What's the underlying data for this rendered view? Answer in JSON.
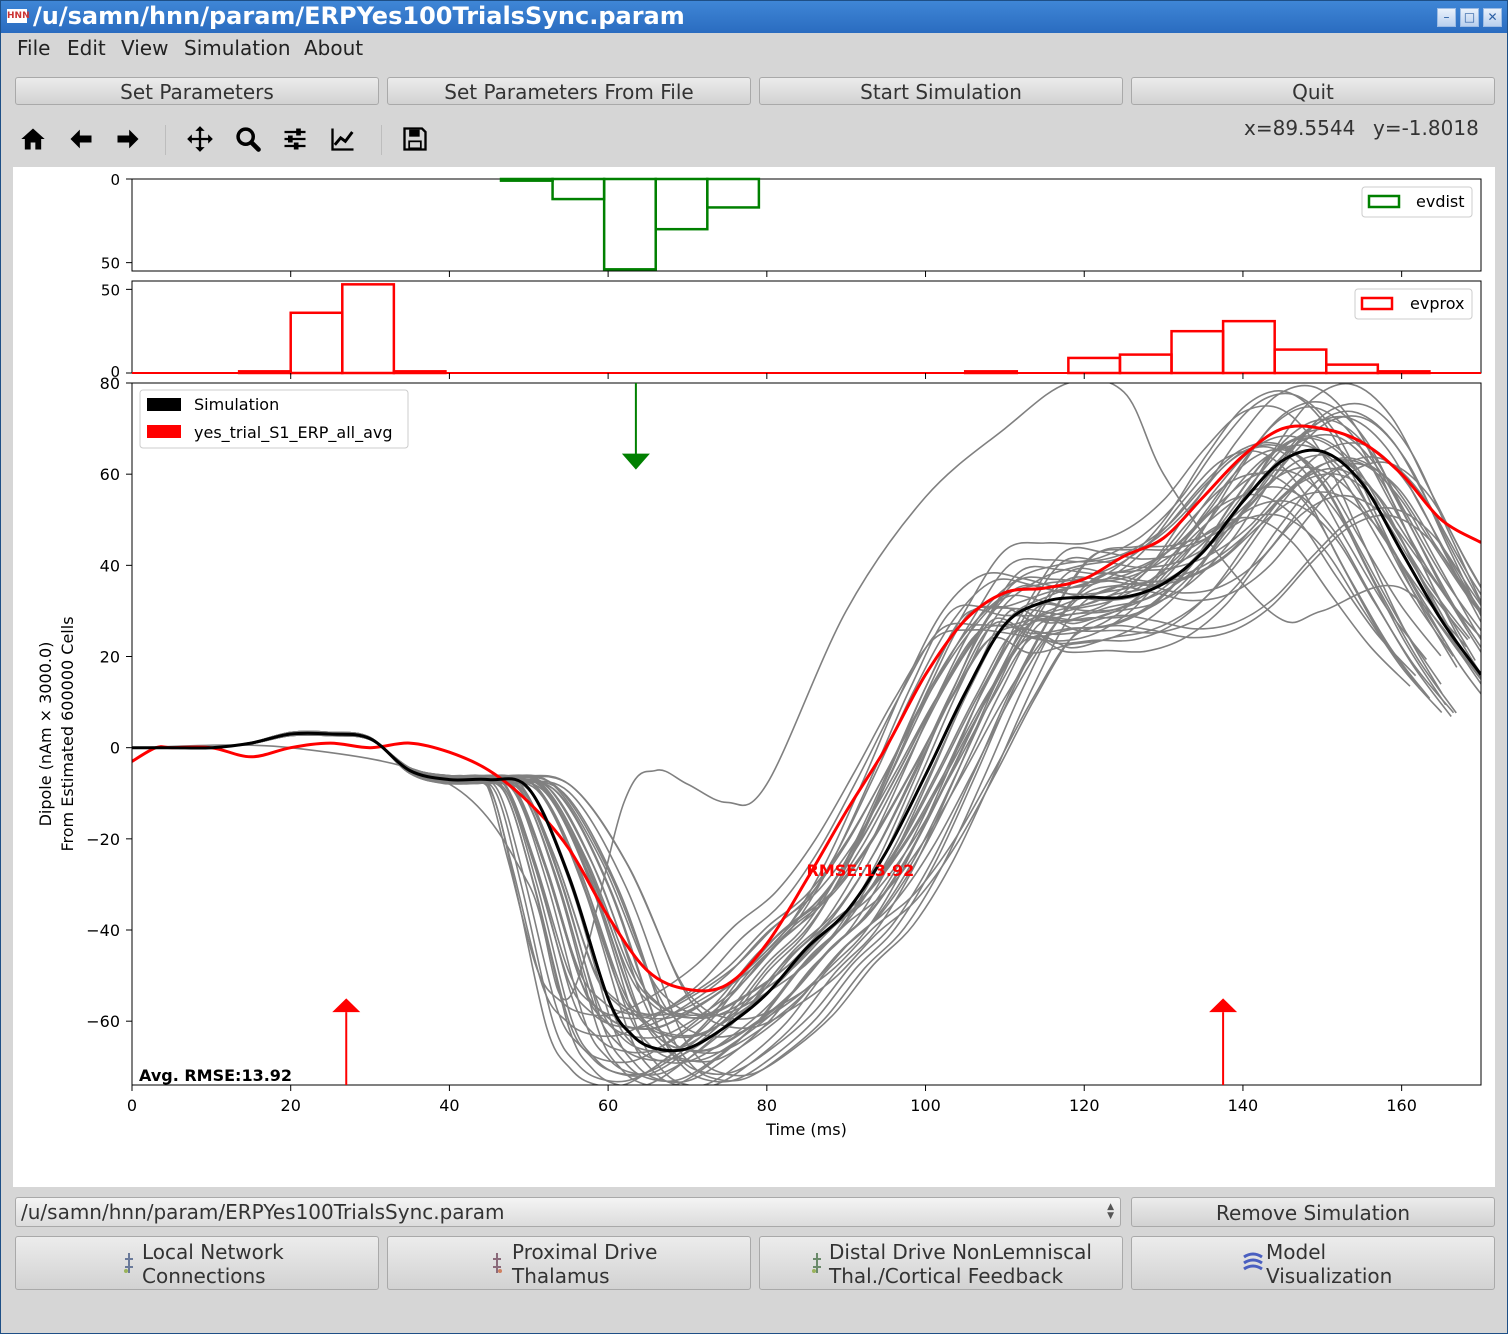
{
  "window": {
    "title": "/u/samn/hnn/param/ERPYes100TrialsSync.param",
    "app_icon_label": "HNN"
  },
  "menu": [
    "File",
    "Edit",
    "View",
    "Simulation",
    "About"
  ],
  "top_buttons": [
    "Set Parameters",
    "Set Parameters From File",
    "Start Simulation",
    "Quit"
  ],
  "toolbar_icons": [
    "home-icon",
    "back-arrow-icon",
    "forward-arrow-icon",
    "pan-icon",
    "zoom-icon",
    "subplots-config-icon",
    "axes-edit-icon",
    "save-icon"
  ],
  "coords": {
    "x": "x=89.5544",
    "y": "y=-1.8018"
  },
  "plot": {
    "evdist_legend": "evdist",
    "evprox_legend": "evprox",
    "legend_sim": "Simulation",
    "legend_data": "yes_trial_S1_ERP_all_avg",
    "ylabel_line1": "Dipole (nAm × 3000.0)",
    "ylabel_line2": "From Estimated 600000 Cells",
    "xlabel": "Time (ms)",
    "rmse_label": "RMSE:13.92",
    "avg_rmse_label": "Avg. RMSE:13.92",
    "colors": {
      "simulation": "#000000",
      "data": "#ff0000",
      "trials": "#808080",
      "evdist": "#008000",
      "evprox": "#ff0000"
    }
  },
  "chart_data": [
    {
      "type": "bar",
      "title": "",
      "series": [
        {
          "name": "evdist",
          "x": [
            40,
            46.5,
            53,
            59.5,
            66,
            72.5
          ],
          "values": [
            0,
            1,
            12,
            54,
            30,
            17
          ]
        }
      ],
      "xlim": [
        0,
        170
      ],
      "ylim": [
        55,
        0
      ],
      "yticks": [
        "0",
        "50"
      ],
      "legend": "top-right"
    },
    {
      "type": "bar",
      "title": "",
      "series": [
        {
          "name": "evprox",
          "x": [
            13.5,
            20,
            26.5,
            33,
            105,
            118,
            124.5,
            131,
            137.5,
            144,
            150.5,
            157
          ],
          "values": [
            1,
            36,
            53,
            1,
            1,
            9,
            11,
            25,
            31,
            14,
            5,
            1
          ]
        }
      ],
      "xlim": [
        0,
        170
      ],
      "ylim": [
        0,
        55
      ],
      "yticks": [
        "0",
        "50"
      ],
      "legend": "top-right"
    },
    {
      "type": "line",
      "title": "",
      "xlabel": "Time (ms)",
      "ylabel": "Dipole (nAm × 3000.0) From Estimated 600000 Cells",
      "xlim": [
        0,
        170
      ],
      "ylim": [
        -74,
        80
      ],
      "xticks": [
        "0",
        "20",
        "40",
        "60",
        "80",
        "100",
        "120",
        "140",
        "160"
      ],
      "yticks": [
        "−60",
        "−40",
        "−20",
        "0",
        "20",
        "40",
        "60",
        "80"
      ],
      "legend": "top-left",
      "grid": false,
      "series": [
        {
          "name": "Simulation",
          "x": [
            0,
            5,
            10,
            15,
            20,
            25,
            30,
            35,
            40,
            45,
            50,
            55,
            60,
            63,
            66,
            70,
            75,
            80,
            85,
            90,
            95,
            100,
            105,
            110,
            115,
            120,
            125,
            130,
            135,
            140,
            145,
            150,
            155,
            160,
            165,
            170
          ],
          "values": [
            0,
            0,
            0,
            1,
            3,
            3,
            2,
            -5,
            -7,
            -7,
            -9,
            -28,
            -55,
            -63,
            -66,
            -66,
            -61,
            -54,
            -44,
            -36,
            -23,
            -6,
            12,
            27,
            32,
            33,
            33,
            36,
            43,
            54,
            63,
            65,
            58,
            43,
            28,
            16
          ]
        },
        {
          "name": "yes_trial_S1_ERP_all_avg",
          "x": [
            0,
            3,
            5,
            10,
            15,
            20,
            25,
            30,
            35,
            40,
            45,
            50,
            55,
            60,
            65,
            70,
            75,
            80,
            85,
            90,
            95,
            100,
            105,
            110,
            115,
            120,
            125,
            130,
            135,
            140,
            145,
            150,
            155,
            160,
            165,
            170
          ],
          "values": [
            -3,
            0,
            0,
            0,
            -2,
            0,
            1,
            0,
            1,
            -1,
            -5,
            -12,
            -22,
            -37,
            -49,
            -53,
            -52,
            -43,
            -29,
            -14,
            0,
            16,
            28,
            34,
            35,
            37,
            42,
            46,
            55,
            64,
            70,
            70,
            67,
            60,
            50,
            45
          ]
        },
        {
          "name": "",
          "x": [
            0,
            100,
            120,
            130,
            140,
            150,
            160,
            170
          ],
          "values": [
            0,
            10,
            33,
            37,
            55,
            80,
            62,
            15
          ]
        }
      ],
      "annotations": [
        "RMSE:13.92",
        "Avg. RMSE:13.92"
      ],
      "drive_arrows": [
        {
          "type": "distal",
          "x": 63.5
        },
        {
          "type": "proximal",
          "x": 27
        },
        {
          "type": "proximal",
          "x": 137.5
        }
      ]
    }
  ],
  "combo": {
    "value": "/u/samn/hnn/param/ERPYes100TrialsSync.param"
  },
  "remove_button": "Remove Simulation",
  "bottom_buttons": [
    {
      "line1": "Local Network",
      "line2": "Connections"
    },
    {
      "line1": "Proximal Drive",
      "line2": "Thalamus"
    },
    {
      "line1": "Distal Drive NonLemniscal",
      "line2": "Thal./Cortical Feedback"
    },
    {
      "line1": "Model",
      "line2": "Visualization"
    }
  ]
}
